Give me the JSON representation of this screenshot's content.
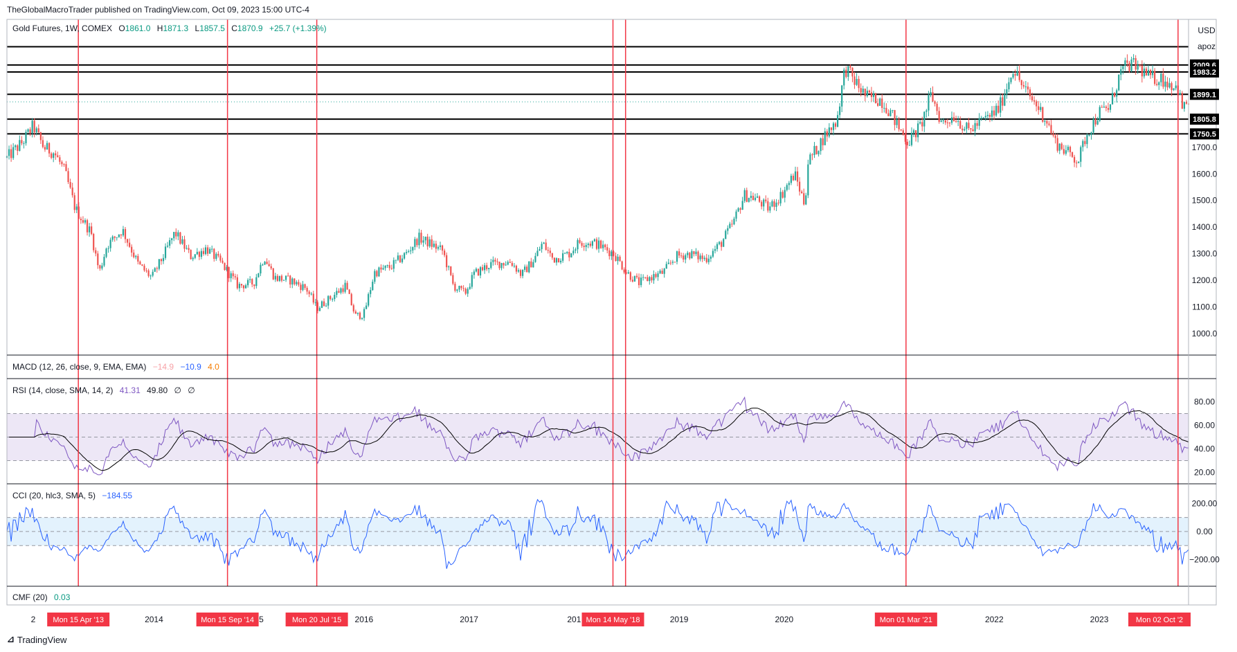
{
  "publisher": "TheGlobalMacroTrader published on TradingView.com, Oct 09, 2023 15:00 UTC-4",
  "branding": {
    "logo_icon": "tradingview-logo-icon",
    "text": "TradingView"
  },
  "price_scale": {
    "currency": "USD",
    "unit": "apoz"
  },
  "chart_data": [
    {
      "id": "price",
      "type": "candlestick",
      "legend": {
        "symbol": "Gold Futures, 1W, COMEX",
        "o_label": "O",
        "o": "1861.0",
        "h_label": "H",
        "h": "1871.3",
        "l_label": "L",
        "l": "1857.5",
        "c_label": "C",
        "c": "1870.9",
        "change": "+25.7 (+1.39%)"
      },
      "ylim": [
        940,
        2160
      ],
      "y_ticks": [
        1000,
        1100,
        1200,
        1300,
        1400,
        1500,
        1600,
        1700
      ],
      "y_tick_labels": [
        "1000.0",
        "1100.0",
        "1200.0",
        "1300.0",
        "1400.0",
        "1500.0",
        "1600.0",
        "1700.0"
      ],
      "horizontal_levels": [
        {
          "value": 2078,
          "label": ""
        },
        {
          "value": 2009.6,
          "label": "2009.6"
        },
        {
          "value": 1983.2,
          "label": "1983.2"
        },
        {
          "value": 1899.1,
          "label": "1899.1"
        },
        {
          "value": 1805.8,
          "label": "1805.8"
        },
        {
          "value": 1750.5,
          "label": "1750.5"
        }
      ],
      "last_price_line": 1870.9,
      "x_range": [
        2012.6,
        2023.85
      ],
      "close_keypoints": [
        [
          2012.6,
          1660
        ],
        [
          2012.75,
          1720
        ],
        [
          2012.85,
          1780
        ],
        [
          2012.95,
          1700
        ],
        [
          2013.05,
          1680
        ],
        [
          2013.15,
          1610
        ],
        [
          2013.25,
          1470
        ],
        [
          2013.4,
          1380
        ],
        [
          2013.48,
          1230
        ],
        [
          2013.55,
          1330
        ],
        [
          2013.7,
          1390
        ],
        [
          2013.85,
          1260
        ],
        [
          2013.98,
          1210
        ],
        [
          2014.1,
          1300
        ],
        [
          2014.2,
          1380
        ],
        [
          2014.35,
          1290
        ],
        [
          2014.5,
          1320
        ],
        [
          2014.65,
          1260
        ],
        [
          2014.8,
          1180
        ],
        [
          2014.95,
          1190
        ],
        [
          2015.05,
          1290
        ],
        [
          2015.15,
          1210
        ],
        [
          2015.3,
          1200
        ],
        [
          2015.45,
          1170
        ],
        [
          2015.55,
          1095
        ],
        [
          2015.7,
          1140
        ],
        [
          2015.82,
          1180
        ],
        [
          2015.92,
          1065
        ],
        [
          2016.0,
          1075
        ],
        [
          2016.1,
          1230
        ],
        [
          2016.25,
          1250
        ],
        [
          2016.4,
          1300
        ],
        [
          2016.52,
          1360
        ],
        [
          2016.62,
          1340
        ],
        [
          2016.75,
          1310
        ],
        [
          2016.85,
          1180
        ],
        [
          2016.96,
          1150
        ],
        [
          2017.05,
          1225
        ],
        [
          2017.2,
          1260
        ],
        [
          2017.4,
          1270
        ],
        [
          2017.5,
          1220
        ],
        [
          2017.62,
          1280
        ],
        [
          2017.7,
          1340
        ],
        [
          2017.8,
          1280
        ],
        [
          2017.95,
          1300
        ],
        [
          2018.05,
          1345
        ],
        [
          2018.2,
          1340
        ],
        [
          2018.38,
          1300
        ],
        [
          2018.5,
          1230
        ],
        [
          2018.62,
          1190
        ],
        [
          2018.72,
          1210
        ],
        [
          2018.85,
          1230
        ],
        [
          2018.97,
          1290
        ],
        [
          2019.1,
          1300
        ],
        [
          2019.25,
          1280
        ],
        [
          2019.4,
          1340
        ],
        [
          2019.52,
          1420
        ],
        [
          2019.62,
          1520
        ],
        [
          2019.72,
          1510
        ],
        [
          2019.85,
          1470
        ],
        [
          2019.97,
          1520
        ],
        [
          2020.1,
          1600
        ],
        [
          2020.2,
          1480
        ],
        [
          2020.22,
          1640
        ],
        [
          2020.38,
          1740
        ],
        [
          2020.5,
          1800
        ],
        [
          2020.58,
          2000
        ],
        [
          2020.65,
          1960
        ],
        [
          2020.78,
          1890
        ],
        [
          2020.92,
          1880
        ],
        [
          2021.0,
          1840
        ],
        [
          2021.08,
          1780
        ],
        [
          2021.18,
          1720
        ],
        [
          2021.3,
          1780
        ],
        [
          2021.4,
          1900
        ],
        [
          2021.5,
          1790
        ],
        [
          2021.62,
          1820
        ],
        [
          2021.75,
          1760
        ],
        [
          2021.85,
          1790
        ],
        [
          2021.97,
          1820
        ],
        [
          2022.05,
          1850
        ],
        [
          2022.18,
          2000
        ],
        [
          2022.28,
          1920
        ],
        [
          2022.4,
          1860
        ],
        [
          2022.5,
          1800
        ],
        [
          2022.58,
          1720
        ],
        [
          2022.7,
          1680
        ],
        [
          2022.8,
          1650
        ],
        [
          2022.88,
          1750
        ],
        [
          2023.0,
          1830
        ],
        [
          2023.1,
          1850
        ],
        [
          2023.2,
          1980
        ],
        [
          2023.28,
          2010
        ],
        [
          2023.38,
          2000
        ],
        [
          2023.48,
          1960
        ],
        [
          2023.58,
          1960
        ],
        [
          2023.68,
          1940
        ],
        [
          2023.75,
          1920
        ],
        [
          2023.8,
          1830
        ],
        [
          2023.82,
          1870
        ]
      ],
      "x_axis_labels": [
        {
          "x": 2014.0,
          "label": "2014"
        },
        {
          "x": 2015.0,
          "label": "15"
        },
        {
          "x": 2016.0,
          "label": "2016"
        },
        {
          "x": 2017.0,
          "label": "2017"
        },
        {
          "x": 2018.0,
          "label": "201"
        },
        {
          "x": 2018.5,
          "label": "8"
        },
        {
          "x": 2019.0,
          "label": "2019"
        },
        {
          "x": 2020.0,
          "label": "2020"
        },
        {
          "x": 2021.0,
          "label": "2021"
        },
        {
          "x": 2022.0,
          "label": "2022"
        },
        {
          "x": 2023.0,
          "label": "2023"
        },
        {
          "x": 2012.85,
          "label": "2"
        }
      ],
      "vertical_markers": [
        {
          "x": 2013.28,
          "label": "Mon 15 Apr '13"
        },
        {
          "x": 2014.7,
          "label": "Mon 15 Sep '14"
        },
        {
          "x": 2015.55,
          "label": "Mon 20 Jul '15"
        },
        {
          "x": 2018.37,
          "label": "Mon 14 May '18"
        },
        {
          "x": 2018.49,
          "label": ""
        },
        {
          "x": 2021.16,
          "label": "Mon 01 Mar '21"
        },
        {
          "x": 2023.75,
          "label": "Mon 02 Oct '2"
        }
      ]
    },
    {
      "id": "macd",
      "type": "line",
      "legend": {
        "name": "MACD (12, 26, close, 9, EMA, EMA)",
        "v1": "−14.9",
        "v2": "−10.9",
        "v3": "4.0"
      }
    },
    {
      "id": "rsi",
      "type": "line",
      "legend": {
        "name": "RSI (14, close, SMA, 14, 2)",
        "v1": "41.31",
        "v2": "49.80",
        "v3": "∅",
        "v4": "∅"
      },
      "ylim": [
        15,
        95
      ],
      "band": [
        30,
        70
      ],
      "midline": 50,
      "y_ticks": [
        20,
        40,
        60,
        80
      ],
      "y_tick_labels": [
        "20.00",
        "40.00",
        "60.00",
        "80.00"
      ]
    },
    {
      "id": "cci",
      "type": "line",
      "legend": {
        "name": "CCI (20, hlc3, SMA, 5)",
        "v1": "−184.55"
      },
      "ylim": [
        -350,
        300
      ],
      "band": [
        -100,
        100
      ],
      "midline": 0,
      "y_ticks": [
        -200,
        0,
        200
      ],
      "y_tick_labels": [
        "−200.00",
        "0.00",
        "200.00"
      ]
    },
    {
      "id": "cmf",
      "type": "line",
      "legend": {
        "name": "CMF (20)",
        "v1": "0.03"
      }
    }
  ],
  "colors": {
    "up": "#26a69a",
    "down": "#ef5350",
    "marker": "#f23645",
    "rsi_line": "#7e57c2",
    "rsi_band": "#ede7f6",
    "cci_line": "#2962ff",
    "cci_band": "#e3f2fd",
    "macd_v1": "#f7a1a6",
    "macd_v2": "#2962ff",
    "macd_v3": "#f57c00",
    "cmf_v1": "#089981",
    "grid": "#f0f3fa",
    "axis_border": "#b2b5be"
  }
}
